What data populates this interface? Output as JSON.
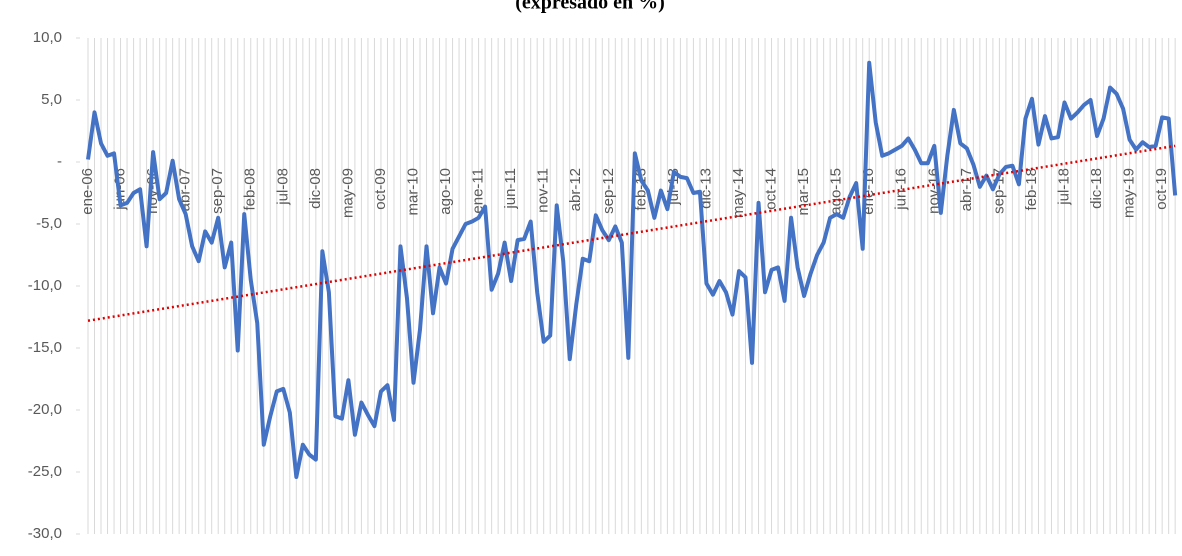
{
  "chart_data": {
    "type": "line",
    "title": "(expresado en %)",
    "categories": [
      "ene-06",
      null,
      null,
      null,
      null,
      "jun-06",
      null,
      null,
      null,
      null,
      "nov-06",
      null,
      null,
      null,
      null,
      "abr-07",
      null,
      null,
      null,
      null,
      "sep-07",
      null,
      null,
      null,
      null,
      "feb-08",
      null,
      null,
      null,
      null,
      "jul-08",
      null,
      null,
      null,
      null,
      "dic-08",
      null,
      null,
      null,
      null,
      "may-09",
      null,
      null,
      null,
      null,
      "oct-09",
      null,
      null,
      null,
      null,
      "mar-10",
      null,
      null,
      null,
      null,
      "ago-10",
      null,
      null,
      null,
      null,
      "ene-11",
      null,
      null,
      null,
      null,
      "jun-11",
      null,
      null,
      null,
      null,
      "nov-11",
      null,
      null,
      null,
      null,
      "abr-12",
      null,
      null,
      null,
      null,
      "sep-12",
      null,
      null,
      null,
      null,
      "feb-13",
      null,
      null,
      null,
      null,
      "jul-13",
      null,
      null,
      null,
      null,
      "dic-13",
      null,
      null,
      null,
      null,
      "may-14",
      null,
      null,
      null,
      null,
      "oct-14",
      null,
      null,
      null,
      null,
      "mar-15",
      null,
      null,
      null,
      null,
      "ago-15",
      null,
      null,
      null,
      null,
      "ene-16",
      null,
      null,
      null,
      null,
      "jun-16",
      null,
      null,
      null,
      null,
      "nov-16",
      null,
      null,
      null,
      null,
      "abr-17",
      null,
      null,
      null,
      null,
      "sep-17",
      null,
      null,
      null,
      null,
      "feb-18",
      null,
      null,
      null,
      null,
      "jul-18",
      null,
      null,
      null,
      null,
      "dic-18",
      null,
      null,
      null,
      null,
      "may-19",
      null,
      null,
      null,
      null,
      "oct-19",
      null,
      null
    ],
    "series": [
      {
        "color": "#4472c4",
        "values": [
          0.2,
          4,
          1.5,
          0.5,
          0.7,
          -3.5,
          -3.3,
          -2.5,
          -2.2,
          -6.8,
          0.8,
          -3.0,
          -2.5,
          0.1,
          -3,
          -4.2,
          -6.8,
          -8,
          -5.6,
          -6.5,
          -4.5,
          -8.5,
          -6.5,
          -15.2,
          -4.2,
          -9.5,
          -13,
          -22.8,
          -20.5,
          -18.5,
          -18.3,
          -20.2,
          -25.4,
          -22.8,
          -23.6,
          -24,
          -7.2,
          -10.5,
          -20.5,
          -20.7,
          -17.6,
          -22,
          -19.4,
          -20.4,
          -21.3,
          -18.5,
          -18,
          -20.8,
          -6.8,
          -11,
          -17.8,
          -13.5,
          -6.8,
          -12.2,
          -8.5,
          -9.8,
          -7,
          -6,
          -5,
          -4.8,
          -4.5,
          -3.6,
          -10.3,
          -9,
          -6.5,
          -9.6,
          -6.3,
          -6.2,
          -4.8,
          -10.5,
          -14.5,
          -14,
          -3.5,
          -8,
          -15.9,
          -11.5,
          -7.8,
          -8,
          -4.3,
          -5.5,
          -6.3,
          -5.2,
          -6.5,
          -15.8,
          0.7,
          -1.5,
          -2.3,
          -4.5,
          -2.3,
          -3.8,
          -0.8,
          -1.2,
          -1.3,
          -2.5,
          -2.4,
          -9.8,
          -10.7,
          -9.6,
          -10.5,
          -12.3,
          -8.8,
          -9.3,
          -16.2,
          -3.3,
          -10.5,
          -8.7,
          -8.5,
          -11.2,
          -4.5,
          -8.5,
          -10.8,
          -9,
          -7.5,
          -6.5,
          -4.5,
          -4.2,
          -4.5,
          -2.8,
          -1.7,
          -7,
          8,
          3.2,
          0.5,
          0.7,
          1,
          1.3,
          1.9,
          1,
          -0.1,
          -0.1,
          1.3,
          -4.1,
          0.5,
          4.2,
          1.5,
          1.1,
          -0.2,
          -2,
          -1.1,
          -2.2,
          -1,
          -0.4,
          -0.3,
          -1.8,
          3.5,
          5.1,
          1.4,
          3.7,
          1.9,
          2,
          4.8,
          3.5,
          4,
          4.6,
          5,
          2.1,
          3.5,
          6,
          5.5,
          4.3,
          1.8,
          1,
          1.6,
          1.2,
          1.3,
          3.6,
          3.5,
          -2.7
        ]
      }
    ],
    "trend": {
      "color": "#e00000",
      "start": -12.8,
      "end": 1.3
    },
    "ylim": [
      -30,
      10
    ],
    "yticks": [
      {
        "value": -30,
        "label": "-30,0"
      },
      {
        "value": -25,
        "label": "-25,0"
      },
      {
        "value": -20,
        "label": "-20,0"
      },
      {
        "value": -15,
        "label": "-15,0"
      },
      {
        "value": -10,
        "label": "-10,0"
      },
      {
        "value": -5,
        "label": "-5,0"
      },
      {
        "value": 0,
        "label": "-"
      },
      {
        "value": 5,
        "label": "5,0"
      },
      {
        "value": 10,
        "label": "10,0"
      }
    ],
    "grid": "x"
  }
}
